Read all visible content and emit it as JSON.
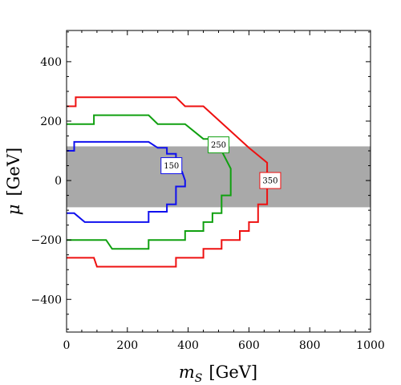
{
  "chart_data": {
    "type": "line",
    "title": "",
    "xlabel": {
      "symbol": "m",
      "subscript": "S",
      "unit": "[GeV]"
    },
    "ylabel": {
      "symbol": "μ",
      "unit": "[GeV]"
    },
    "xlim": [
      0,
      1000
    ],
    "ylim": [
      -510,
      505
    ],
    "xticks": [
      0,
      200,
      400,
      600,
      800,
      1000
    ],
    "yticks": [
      -400,
      -200,
      0,
      200,
      400
    ],
    "xtick_labels": [
      "0",
      "200",
      "400",
      "600",
      "800",
      "1000"
    ],
    "ytick_labels": [
      "−400",
      "−200",
      "0",
      "200",
      "400"
    ],
    "grid": false,
    "legend": "none",
    "band": {
      "y_range": [
        -90,
        115
      ],
      "color": "#a9a9a9"
    },
    "series": [
      {
        "name": "150",
        "color": "#1010ee",
        "points": [
          [
            0,
            100
          ],
          [
            25,
            100
          ],
          [
            25,
            130
          ],
          [
            270,
            130
          ],
          [
            300,
            110
          ],
          [
            330,
            110
          ],
          [
            330,
            90
          ],
          [
            360,
            90
          ],
          [
            360,
            30
          ],
          [
            380,
            30
          ],
          [
            390,
            0
          ],
          [
            390,
            -20
          ],
          [
            360,
            -20
          ],
          [
            360,
            -80
          ],
          [
            330,
            -80
          ],
          [
            330,
            -105
          ],
          [
            270,
            -105
          ],
          [
            270,
            -140
          ],
          [
            60,
            -140
          ],
          [
            25,
            -110
          ],
          [
            0,
            -110
          ]
        ],
        "label": {
          "text": "150",
          "at": [
            345,
            50
          ]
        }
      },
      {
        "name": "250",
        "color": "#10a010",
        "points": [
          [
            0,
            190
          ],
          [
            90,
            190
          ],
          [
            90,
            220
          ],
          [
            270,
            220
          ],
          [
            300,
            190
          ],
          [
            390,
            190
          ],
          [
            450,
            140
          ],
          [
            480,
            140
          ],
          [
            480,
            100
          ],
          [
            510,
            100
          ],
          [
            540,
            40
          ],
          [
            540,
            -50
          ],
          [
            510,
            -50
          ],
          [
            510,
            -110
          ],
          [
            480,
            -110
          ],
          [
            480,
            -140
          ],
          [
            450,
            -140
          ],
          [
            450,
            -170
          ],
          [
            390,
            -170
          ],
          [
            390,
            -200
          ],
          [
            270,
            -200
          ],
          [
            270,
            -230
          ],
          [
            150,
            -230
          ],
          [
            130,
            -200
          ],
          [
            0,
            -200
          ]
        ],
        "label": {
          "text": "250",
          "at": [
            500,
            120
          ]
        }
      },
      {
        "name": "350",
        "color": "#ee1010",
        "points": [
          [
            0,
            250
          ],
          [
            30,
            250
          ],
          [
            30,
            280
          ],
          [
            360,
            280
          ],
          [
            390,
            250
          ],
          [
            450,
            250
          ],
          [
            600,
            110
          ],
          [
            660,
            60
          ],
          [
            660,
            -80
          ],
          [
            630,
            -80
          ],
          [
            630,
            -140
          ],
          [
            600,
            -140
          ],
          [
            600,
            -170
          ],
          [
            570,
            -170
          ],
          [
            570,
            -200
          ],
          [
            510,
            -200
          ],
          [
            510,
            -230
          ],
          [
            450,
            -230
          ],
          [
            450,
            -260
          ],
          [
            360,
            -260
          ],
          [
            360,
            -290
          ],
          [
            100,
            -290
          ],
          [
            90,
            -260
          ],
          [
            0,
            -260
          ]
        ],
        "label": {
          "text": "350",
          "at": [
            670,
            0
          ]
        }
      }
    ]
  }
}
